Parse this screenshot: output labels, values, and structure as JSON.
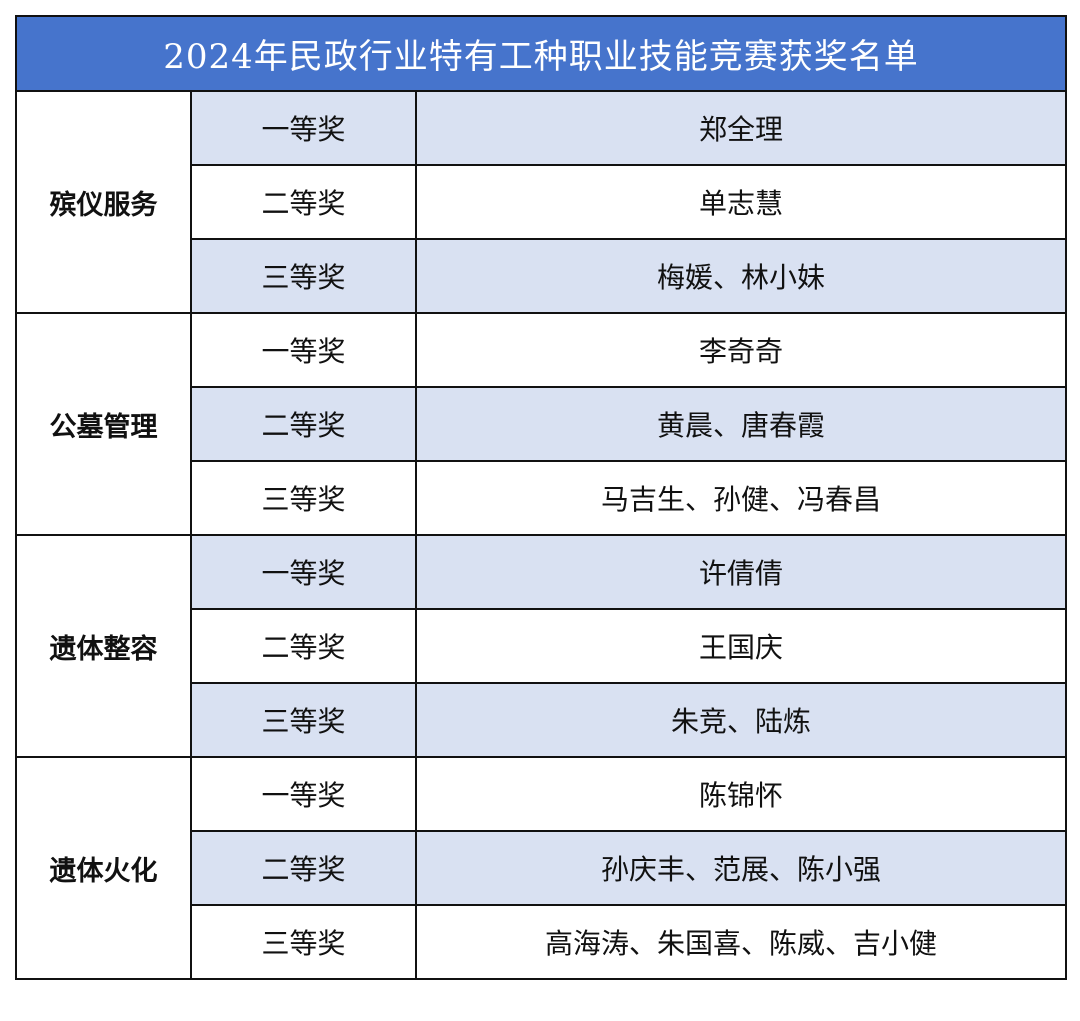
{
  "title": "2024年民政行业特有工种职业技能竞赛获奖名单",
  "colors": {
    "header_bg": "#4674CC",
    "header_text": "#FFFFFF",
    "row_shade": "#D9E1F2"
  },
  "categories": [
    {
      "name": "殡仪服务",
      "awards": [
        {
          "level": "一等奖",
          "winners": "郑全理"
        },
        {
          "level": "二等奖",
          "winners": "单志慧"
        },
        {
          "level": "三等奖",
          "winners": "梅媛、林小妹"
        }
      ]
    },
    {
      "name": "公墓管理",
      "awards": [
        {
          "level": "一等奖",
          "winners": "李奇奇"
        },
        {
          "level": "二等奖",
          "winners": "黄晨、唐春霞"
        },
        {
          "level": "三等奖",
          "winners": "马吉生、孙健、冯春昌"
        }
      ]
    },
    {
      "name": "遗体整容",
      "awards": [
        {
          "level": "一等奖",
          "winners": "许倩倩"
        },
        {
          "level": "二等奖",
          "winners": "王国庆"
        },
        {
          "level": "三等奖",
          "winners": "朱竞、陆炼"
        }
      ]
    },
    {
      "name": "遗体火化",
      "awards": [
        {
          "level": "一等奖",
          "winners": "陈锦怀"
        },
        {
          "level": "二等奖",
          "winners": "孙庆丰、范展、陈小强"
        },
        {
          "level": "三等奖",
          "winners": "高海涛、朱国喜、陈威、吉小健"
        }
      ]
    }
  ]
}
